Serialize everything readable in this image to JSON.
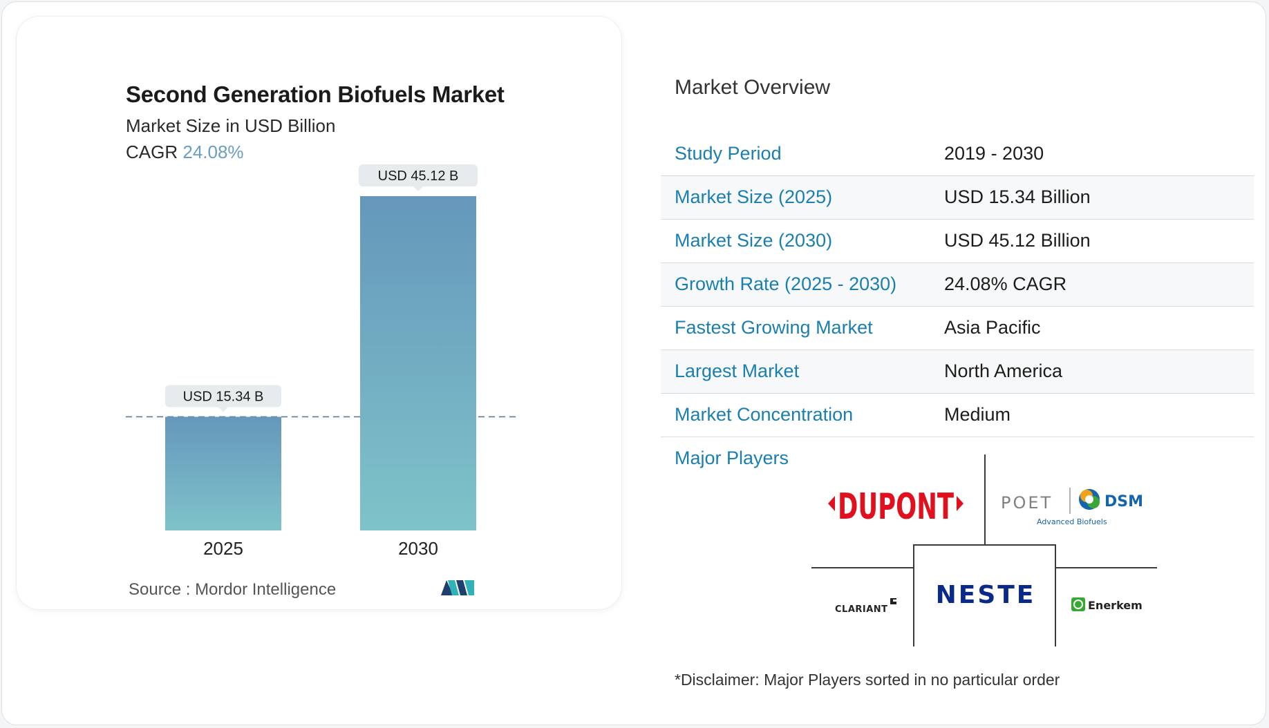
{
  "chart_data": {
    "type": "bar",
    "title": "Second Generation Biofuels Market",
    "subtitle": "Market Size in USD Billion",
    "cagr_label": "CAGR",
    "cagr_value": "24.08%",
    "categories": [
      "2025",
      "2030"
    ],
    "values": [
      15.34,
      45.12
    ],
    "data_labels": [
      "USD 15.34 B",
      "USD 45.12 B"
    ],
    "ylim": [
      0,
      45.12
    ],
    "reference_line": "dashed at 2025 value",
    "bar_gradient": [
      "#6597bb",
      "#7fc3c9"
    ]
  },
  "source": {
    "label": "Source :",
    "value": "Mordor Intelligence"
  },
  "overview": {
    "title": "Market Overview",
    "rows": [
      {
        "key": "Study Period",
        "value": "2019 - 2030"
      },
      {
        "key": "Market Size (2025)",
        "value": "USD 15.34 Billion"
      },
      {
        "key": "Market Size (2030)",
        "value": "USD 45.12 Billion"
      },
      {
        "key": "Growth Rate (2025 - 2030)",
        "value": "24.08% CAGR"
      },
      {
        "key": "Fastest Growing Market",
        "value": "Asia Pacific"
      },
      {
        "key": "Largest Market",
        "value": "North America"
      },
      {
        "key": "Market Concentration",
        "value": "Medium"
      }
    ]
  },
  "players": {
    "label": "Major Players",
    "logos": {
      "dupont": "DUPONT",
      "poet": "POET",
      "dsm": "DSM",
      "poet_dsm_sub": "Advanced Biofuels",
      "neste": "NESTE",
      "clariant": "CLARIANT",
      "enerkem": "Enerkem"
    }
  },
  "disclaimer": "*Disclaimer: Major Players sorted in no particular order",
  "colors": {
    "accent": "#1a7fb0",
    "cagr": "#6a9ec2",
    "dupont": "#e0101e",
    "neste": "#0a2a8a",
    "dsm": "#1464ae",
    "enerkem": "#37a832"
  }
}
